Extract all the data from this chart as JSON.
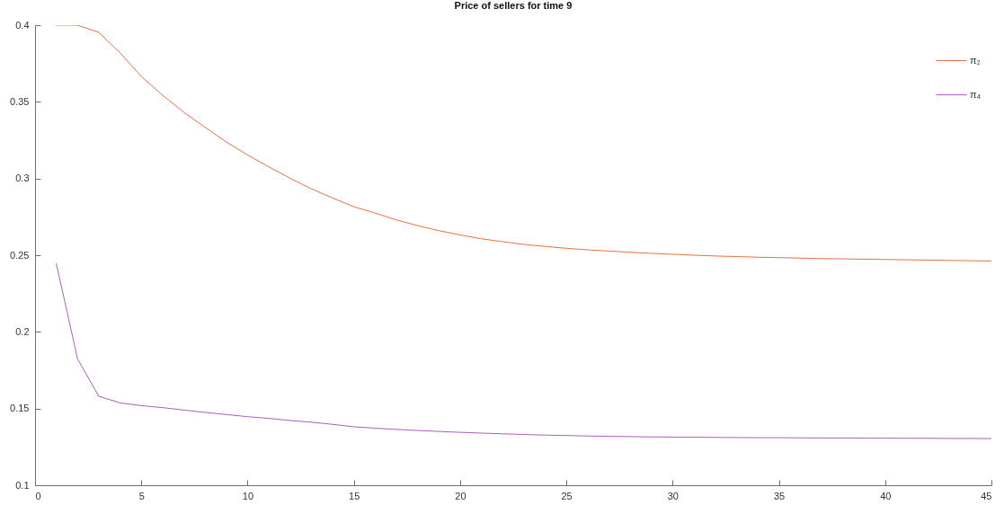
{
  "chart_data": {
    "type": "line",
    "title": "Price of sellers for time 9",
    "x": [
      1,
      2,
      3,
      4,
      5,
      6,
      7,
      8,
      9,
      10,
      11,
      12,
      13,
      14,
      15,
      16,
      17,
      18,
      19,
      20,
      21,
      22,
      23,
      24,
      25,
      26,
      27,
      28,
      29,
      30,
      31,
      32,
      33,
      34,
      35,
      36,
      37,
      38,
      39,
      40,
      41,
      42,
      43,
      44,
      45
    ],
    "xlim": [
      0,
      45
    ],
    "xticks": [
      0,
      5,
      10,
      15,
      20,
      25,
      30,
      35,
      40,
      45
    ],
    "ylim": [
      0.1,
      0.4
    ],
    "yticks": [
      0.1,
      0.15,
      0.2,
      0.25,
      0.3,
      0.35,
      0.4
    ],
    "grid": false,
    "legend": "top right",
    "marker": "none",
    "line_style": "solid",
    "series": [
      {
        "name": "π₂",
        "color": "#e8703f",
        "values": [
          0.4,
          0.4,
          0.3953,
          0.382,
          0.3666,
          0.3543,
          0.3432,
          0.3334,
          0.3238,
          0.3154,
          0.3076,
          0.3002,
          0.2933,
          0.2873,
          0.2816,
          0.2775,
          0.273,
          0.2693,
          0.266,
          0.2632,
          0.2607,
          0.2588,
          0.257,
          0.2557,
          0.2545,
          0.2535,
          0.2527,
          0.2519,
          0.2512,
          0.2506,
          0.25,
          0.2495,
          0.2491,
          0.2487,
          0.2484,
          0.2481,
          0.2478,
          0.2476,
          0.2474,
          0.2472,
          0.247,
          0.2468,
          0.2466,
          0.2464,
          0.2462
        ]
      },
      {
        "name": "π₄",
        "color": "#ab5fbd",
        "values": [
          0.2445,
          0.1824,
          0.158,
          0.1537,
          0.1519,
          0.1506,
          0.149,
          0.1475,
          0.1461,
          0.1447,
          0.1436,
          0.1422,
          0.1411,
          0.1397,
          0.1381,
          0.1372,
          0.1364,
          0.1357,
          0.1351,
          0.1345,
          0.134,
          0.1335,
          0.1331,
          0.1327,
          0.1324,
          0.1321,
          0.1319,
          0.1317,
          0.1315,
          0.1314,
          0.1313,
          0.1312,
          0.1311,
          0.131,
          0.131,
          0.1309,
          0.1308,
          0.1308,
          0.1307,
          0.1307,
          0.1306,
          0.1306,
          0.1305,
          0.1305,
          0.1304
        ]
      }
    ]
  }
}
